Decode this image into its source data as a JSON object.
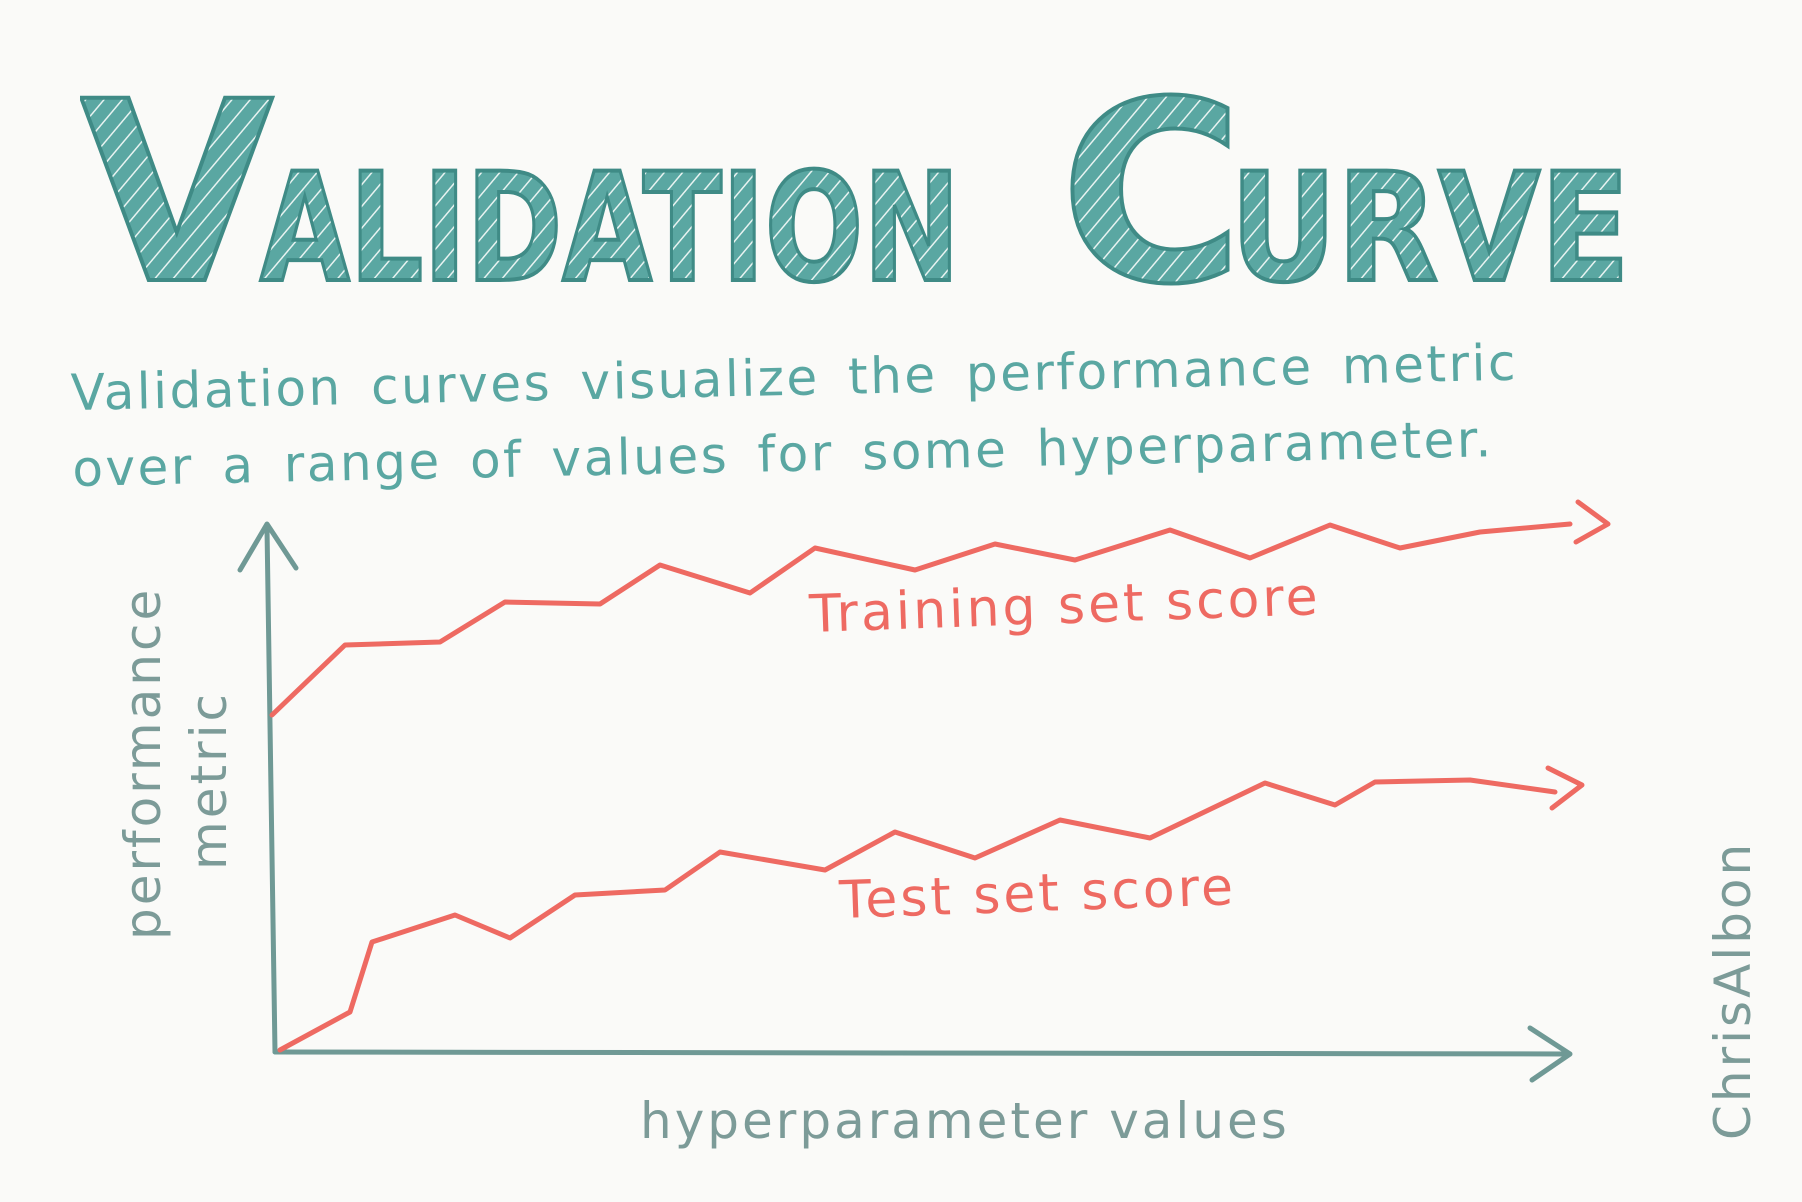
{
  "title": {
    "word1": "VALIDATION",
    "word2": "CURVE"
  },
  "subtitle": {
    "line1": "Validation curves visualize the performance metric",
    "line2": "over a range of values for some hyperparameter."
  },
  "diagram": {
    "y_axis_label_line1": "performance",
    "y_axis_label_line2": "metric",
    "x_axis_label": "hyperparameter values",
    "training_label": "Training set score",
    "test_label": "Test set score",
    "signature": "ChrisAlbon",
    "colors": {
      "title": "#5aa7a2",
      "axis": "#6f9995",
      "curve": "#ee6a62",
      "text_gray": "#7c9b98"
    }
  }
}
